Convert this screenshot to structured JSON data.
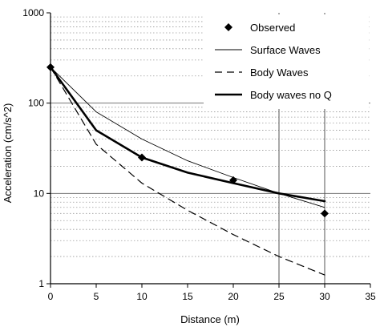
{
  "chart_data": {
    "type": "line",
    "title": "",
    "xlabel": "Distance (m)",
    "ylabel": "Acceleration (cm/s^2)",
    "xlim": [
      0,
      35
    ],
    "ylim": [
      1,
      1000
    ],
    "y_scale": "log",
    "x_ticks": [
      "0",
      "5",
      "10",
      "15",
      "20",
      "25",
      "30",
      "35"
    ],
    "y_ticks": [
      "1",
      "10",
      "100",
      "1000"
    ],
    "grid": true,
    "legend_position": "top-right",
    "series": [
      {
        "name": "Observed",
        "style": "markers",
        "marker": "diamond",
        "x": [
          0,
          10,
          20,
          30
        ],
        "y": [
          250,
          25,
          14,
          6
        ]
      },
      {
        "name": "Surface Waves",
        "style": "thin-solid",
        "x": [
          0,
          5,
          10,
          15,
          20,
          25,
          30
        ],
        "y": [
          250,
          80,
          40,
          23,
          15,
          10,
          7
        ]
      },
      {
        "name": "Body Waves",
        "style": "dashed",
        "x": [
          0,
          5,
          10,
          15,
          20,
          25,
          30
        ],
        "y": [
          250,
          35,
          13,
          6.5,
          3.5,
          2,
          1.25
        ]
      },
      {
        "name": "Body waves no Q",
        "style": "thick-solid",
        "x": [
          0,
          5,
          10,
          15,
          20,
          25,
          30
        ],
        "y": [
          250,
          50,
          25,
          17,
          13,
          10,
          8.2
        ]
      }
    ]
  }
}
